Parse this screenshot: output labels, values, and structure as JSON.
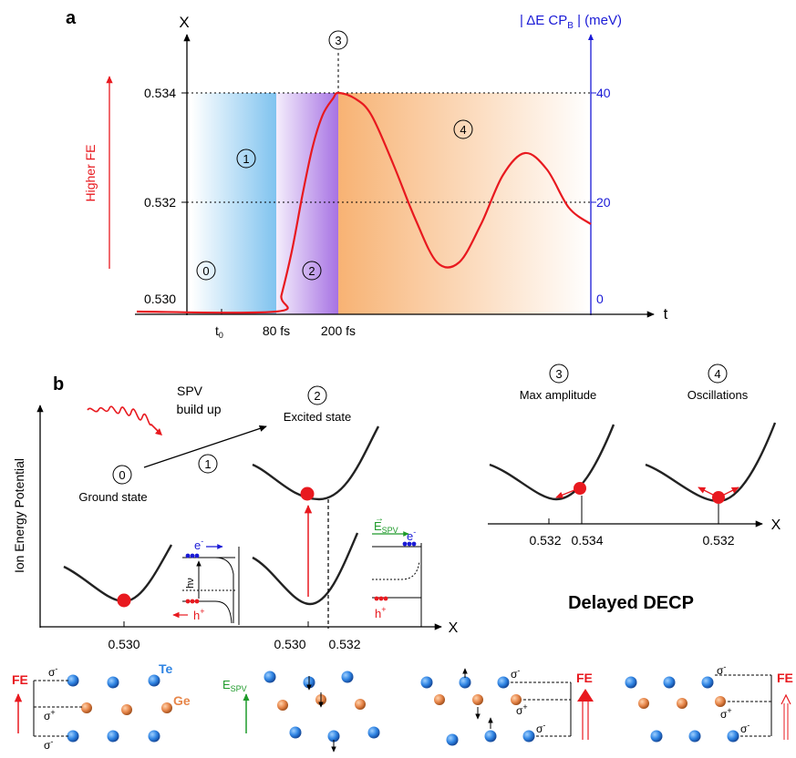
{
  "colors": {
    "accent_red": "#e8191f",
    "right_axis_blue": "#1a1ad6",
    "zone1_blue": "#79c0ee",
    "zone2_violet": "#a26be2",
    "zone4_orange": "#f6a55b",
    "te_atom": "#2f84e3",
    "ge_atom": "#e7864a",
    "field_green": "#1e9a2a"
  },
  "panel_a": {
    "label": "a",
    "y_axis_title": "X",
    "right_axis_title_prefix": "| ΔE CP",
    "right_axis_title_sub": "B",
    "right_axis_title_suffix": " | (meV)",
    "x_axis_title": "t",
    "left_ticks": [
      "0.534",
      "0.532",
      "0.530"
    ],
    "right_ticks": [
      "40",
      "20",
      "0"
    ],
    "x_ticks": [
      "t",
      "80 fs",
      "200 fs"
    ],
    "x_tick_t_sub": "0",
    "higher_fe": "Higher FE",
    "zones": [
      "1",
      "2",
      "3",
      "4",
      "0"
    ]
  },
  "panel_b": {
    "label": "b",
    "y_axis_title": "Ion Energy Potential",
    "x_axis_title": "X",
    "x_ticks": [
      "0.530",
      "0.530",
      "0.532"
    ],
    "spv_line1": "SPV",
    "spv_line2": "build up",
    "ground_state": "Ground state",
    "excited_state": "Excited state",
    "zone_nums": [
      "0",
      "1",
      "2"
    ],
    "inset1": {
      "electron": "e",
      "hole": "h",
      "photon": "hν"
    },
    "inset2": {
      "field_main": "E",
      "field_sub": "SPV",
      "electron": "e",
      "hole": "h"
    }
  },
  "panel_c": {
    "zone_nums": [
      "3",
      "4"
    ],
    "titles": [
      "Max amplitude",
      "Oscillations"
    ],
    "x_axis_title": "X",
    "ticks": [
      "0.532",
      "0.534",
      "0.532"
    ],
    "caption": "Delayed DECP"
  },
  "lattice": {
    "fe_label": "FE",
    "te_label": "Te",
    "ge_label": "Ge",
    "sigma": "σ",
    "field_main": "E",
    "field_sub": "SPV"
  },
  "chart_data": {
    "type": "line",
    "title": "",
    "xlabel": "t",
    "ylabel": "X",
    "y2label": "| ΔE CPB | (meV)",
    "x_ticks": [
      "t0",
      "80 fs",
      "200 fs"
    ],
    "ylim": [
      0.53,
      0.534
    ],
    "y2lim": [
      0,
      40
    ],
    "y_ticks": [
      0.53,
      0.532,
      0.534
    ],
    "y2_ticks": [
      0,
      20,
      40
    ],
    "grid": "dotted reference lines at 0.532 and 0.534",
    "series": [
      {
        "x_fs": [
          0,
          80,
          90,
          110,
          130,
          150,
          170,
          190,
          200,
          215,
          230,
          250,
          270,
          290,
          310,
          330,
          350,
          370,
          390,
          410,
          430
        ],
        "values": [
          0.53,
          0.53,
          0.5303,
          0.5311,
          0.5321,
          0.533,
          0.5336,
          0.5339,
          0.534,
          0.5339,
          0.5336,
          0.5327,
          0.5317,
          0.5309,
          0.5309,
          0.5316,
          0.5325,
          0.5329,
          0.5326,
          0.5319,
          0.5316
        ]
      }
    ]
  }
}
